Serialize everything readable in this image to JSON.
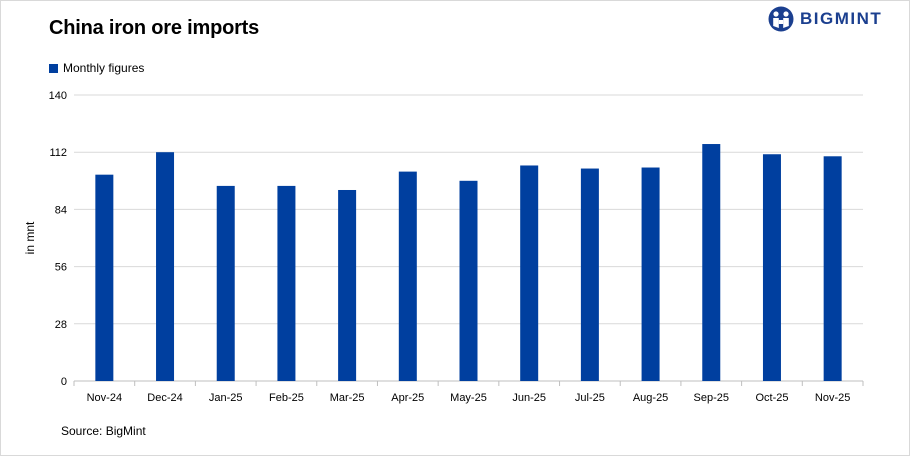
{
  "title": "China iron ore imports",
  "logo": {
    "text": "BIGMINT"
  },
  "source": "Source: BigMint",
  "chart_data": {
    "type": "bar",
    "title": "China iron ore imports",
    "xlabel": "",
    "ylabel": "in mnt",
    "ylim": [
      0,
      140
    ],
    "yticks": [
      0,
      28,
      56,
      84,
      112,
      140
    ],
    "grid": true,
    "legend_position": "top-left",
    "bar_color": "#003f9f",
    "categories": [
      "Nov-24",
      "Dec-24",
      "Jan-25",
      "Feb-25",
      "Mar-25",
      "Apr-25",
      "May-25",
      "Jun-25",
      "Jul-25",
      "Aug-25",
      "Sep-25",
      "Oct-25",
      "Nov-25"
    ],
    "series": [
      {
        "name": "Monthly figures",
        "values": [
          101,
          112,
          95.5,
          95.5,
          93.5,
          102.5,
          98,
          105.5,
          104,
          104.5,
          116,
          111,
          110
        ]
      }
    ]
  }
}
